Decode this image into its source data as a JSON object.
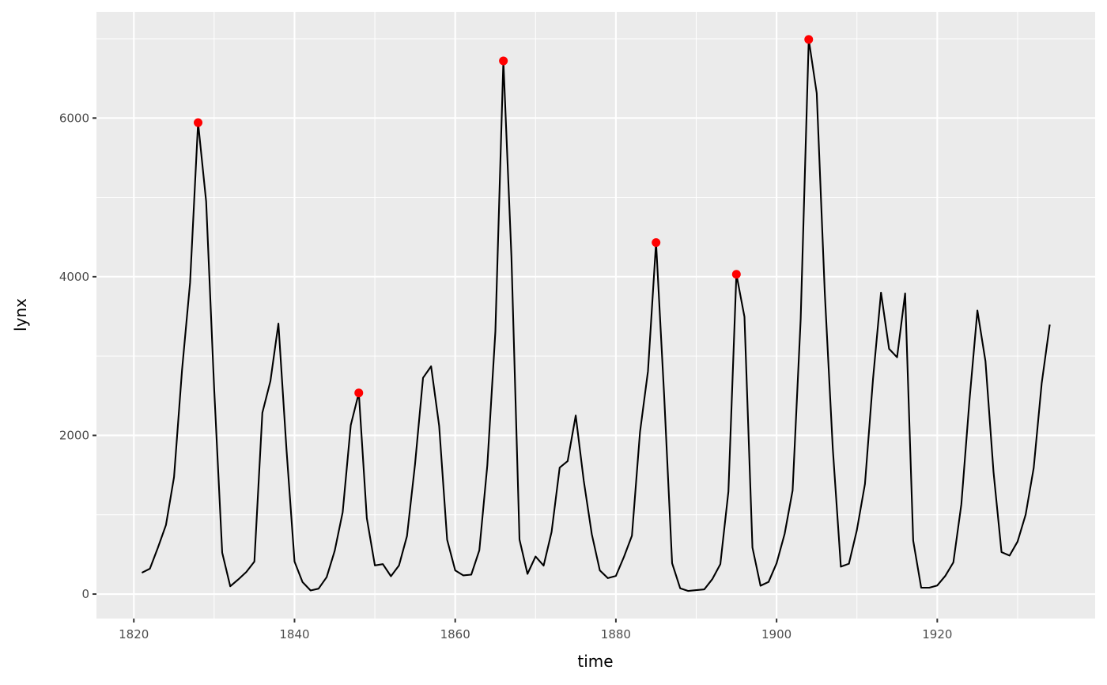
{
  "chart_data": {
    "type": "line",
    "title": "",
    "xlabel": "time",
    "ylabel": "lynx",
    "xlim": [
      1815.35,
      1939.65
    ],
    "ylim": [
      -308.6,
      7338.6
    ],
    "x_ticks": [
      1820,
      1840,
      1860,
      1880,
      1900,
      1920
    ],
    "y_ticks": [
      0,
      2000,
      4000,
      6000
    ],
    "grid": true,
    "x_start": 1821,
    "line_color": "#000000",
    "point_color": "#FF0000",
    "panel_background": "#EBEBEB",
    "series": [
      {
        "values": [
          269,
          321,
          585,
          871,
          1475,
          2821,
          3928,
          5943,
          4950,
          2577,
          523,
          98,
          184,
          279,
          409,
          2285,
          2685,
          3409,
          1824,
          409,
          151,
          45,
          68,
          213,
          546,
          1033,
          2129,
          2536,
          957,
          361,
          377,
          225,
          360,
          731,
          1638,
          2725,
          2871,
          2119,
          684,
          299,
          236,
          245,
          552,
          1623,
          3311,
          6721,
          4254,
          687,
          255,
          473,
          358,
          784,
          1594,
          1676,
          2251,
          1426,
          756,
          299,
          201,
          229,
          469,
          736,
          2042,
          2811,
          4431,
          2511,
          389,
          73,
          39,
          49,
          59,
          188,
          377,
          1292,
          4031,
          3495,
          587,
          105,
          153,
          387,
          758,
          1307,
          3465,
          6991,
          6313,
          3794,
          1836,
          345,
          382,
          808,
          1388,
          2713,
          3800,
          3091,
          2985,
          3790,
          674,
          81,
          80,
          108,
          229,
          399,
          1132,
          2432,
          3574,
          2935,
          1537,
          529,
          485,
          662,
          1000,
          1590,
          2657,
          3396
        ]
      }
    ],
    "highlighted_points": [
      {
        "x": 1828,
        "y": 5943
      },
      {
        "x": 1848,
        "y": 2536
      },
      {
        "x": 1866,
        "y": 6721
      },
      {
        "x": 1885,
        "y": 4431
      },
      {
        "x": 1895,
        "y": 4031
      },
      {
        "x": 1904,
        "y": 6991
      }
    ]
  }
}
